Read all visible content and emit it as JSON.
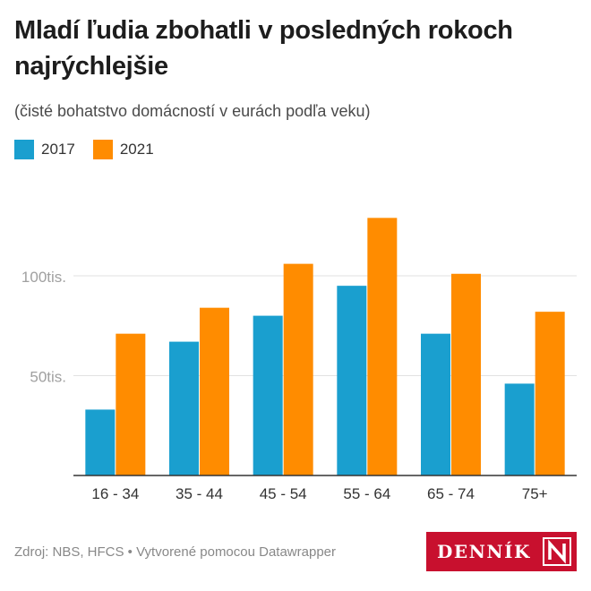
{
  "header": {
    "title": "Mladí ľudia zbohatli v posledných rokoch najrýchlejšie",
    "subtitle": "(čisté bohatstvo domácností v eurách podľa veku)"
  },
  "legend": {
    "items": [
      {
        "label": "2017",
        "color": "#1a9fcf"
      },
      {
        "label": "2021",
        "color": "#ff8c00"
      }
    ]
  },
  "chart_data": {
    "type": "bar",
    "categories": [
      "16 - 34",
      "35 - 44",
      "45 - 54",
      "55 - 64",
      "65 - 74",
      "75+"
    ],
    "series": [
      {
        "name": "2017",
        "color": "#1a9fcf",
        "values": [
          33000,
          67000,
          80000,
          95000,
          71000,
          46000
        ]
      },
      {
        "name": "2021",
        "color": "#ff8c00",
        "values": [
          71000,
          84000,
          106000,
          129000,
          101000,
          82000
        ]
      }
    ],
    "yticks": [
      {
        "value": 50000,
        "label": "50tis."
      },
      {
        "value": 100000,
        "label": "100tis."
      }
    ],
    "ylim": [
      0,
      140000
    ],
    "grid": true
  },
  "footer": {
    "source": "Zdroj: NBS, HFCS • Vytvorené pomocou Datawrapper",
    "logo_text": "DENNÍK",
    "logo_letter": "N",
    "logo_bg": "#c8102e"
  }
}
